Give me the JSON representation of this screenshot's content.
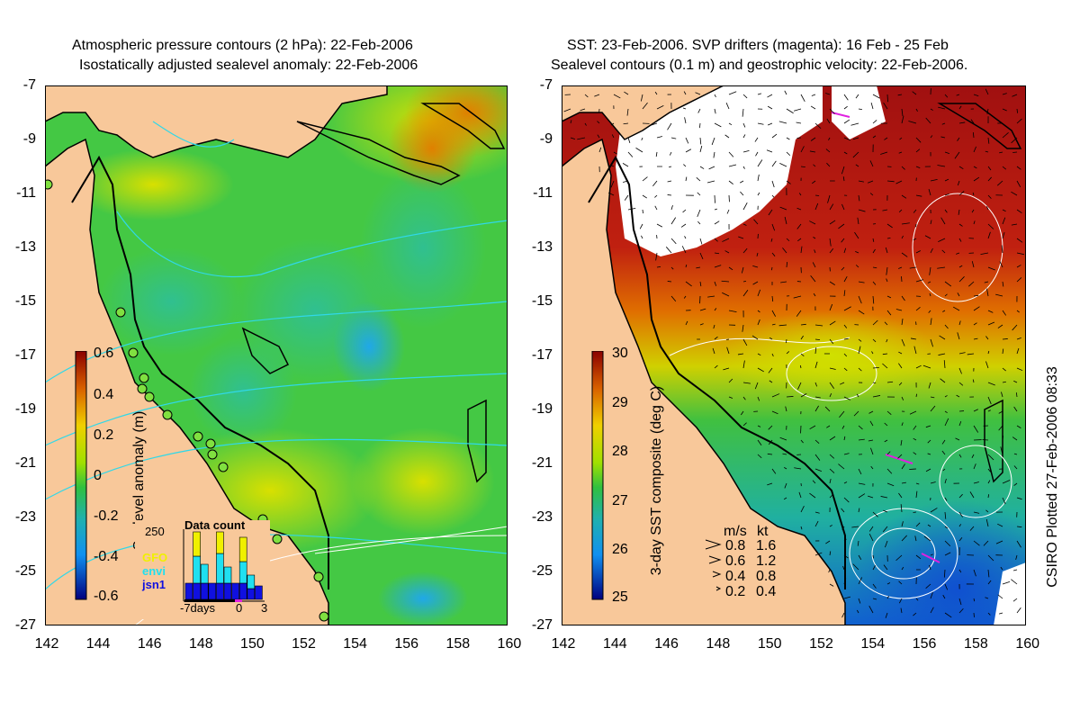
{
  "left_panel": {
    "title_line1": "Atmospheric pressure contours (2 hPa): 22-Feb-2006",
    "title_line2": "Isostatically adjusted sealevel anomaly: 22-Feb-2006",
    "colorbar": {
      "label": "Sealevel anomaly (m)",
      "ticks": [
        "0.6",
        "0.4",
        "0.2",
        "0",
        "-0.2",
        "-0.4",
        "-0.6"
      ]
    },
    "inset": {
      "title": "Data count",
      "ymax_label": "250",
      "legend": [
        "GFO",
        "envi",
        "jsn1"
      ],
      "legend_colors": [
        "#f0f000",
        "#20e0f0",
        "#1010e0"
      ],
      "xticks": [
        "-7days",
        "0",
        "3"
      ],
      "counts": [
        {
          "gfo": 0,
          "envi": 0,
          "jsn1": 60
        },
        {
          "gfo": 90,
          "envi": 100,
          "jsn1": 60
        },
        {
          "gfo": 0,
          "envi": 70,
          "jsn1": 60
        },
        {
          "gfo": 0,
          "envi": 0,
          "jsn1": 60
        },
        {
          "gfo": 80,
          "envi": 110,
          "jsn1": 60
        },
        {
          "gfo": 0,
          "envi": 60,
          "jsn1": 60
        },
        {
          "gfo": 0,
          "envi": 0,
          "jsn1": 60
        },
        {
          "gfo": 90,
          "envi": 80,
          "jsn1": 60
        },
        {
          "gfo": 0,
          "envi": 50,
          "jsn1": 40
        },
        {
          "gfo": 0,
          "envi": 0,
          "jsn1": 50
        }
      ]
    }
  },
  "right_panel": {
    "title_line1": "SST: 23-Feb-2006. SVP drifters (magenta): 16 Feb - 25 Feb",
    "title_line2": "Sealevel contours (0.1 m) and geostrophic velocity: 22-Feb-2006.",
    "colorbar": {
      "label": "3-day SST composite (deg C)",
      "ticks": [
        "30",
        "29",
        "28",
        "27",
        "26",
        "25"
      ]
    },
    "speed_legend": {
      "header_ms": "m/s",
      "header_kt": "kt",
      "rows": [
        {
          "ms": "0.8",
          "kt": "1.6"
        },
        {
          "ms": "0.6",
          "kt": "1.2"
        },
        {
          "ms": "0.4",
          "kt": "0.8"
        },
        {
          "ms": "0.2",
          "kt": "0.4"
        }
      ]
    }
  },
  "axes": {
    "lat_labels": [
      "-7",
      "-9",
      "-11",
      "-13",
      "-15",
      "-17",
      "-19",
      "-21",
      "-23",
      "-25",
      "-27"
    ],
    "lon_labels": [
      "142",
      "144",
      "146",
      "148",
      "150",
      "152",
      "154",
      "156",
      "158",
      "160"
    ]
  },
  "credit": "CSIRO Plotted 27-Feb-2006 08:33",
  "colors": {
    "land": "#f8c89a",
    "ocean_green": "#40c840",
    "sst_red": "#a01010",
    "cloud": "#ffffff"
  }
}
